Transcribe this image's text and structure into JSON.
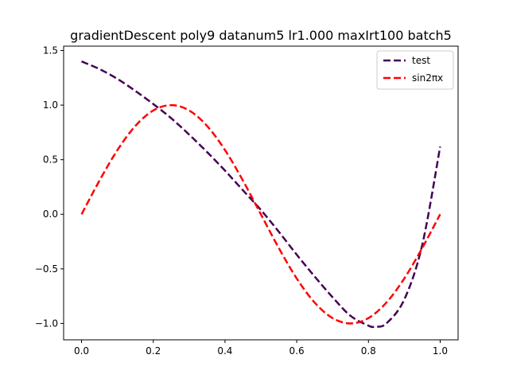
{
  "chart_data": {
    "type": "line",
    "title": "gradientDescent poly9 datanum5 lr1.000 maxIrt100 batch5",
    "xlabel": "",
    "ylabel": "",
    "xlim": [
      -0.05,
      1.05
    ],
    "ylim": [
      -1.15,
      1.54
    ],
    "x_ticks": [
      0.0,
      0.2,
      0.4,
      0.6,
      0.8,
      1.0
    ],
    "x_tick_labels": [
      "0.0",
      "0.2",
      "0.4",
      "0.6",
      "0.8",
      "1.0"
    ],
    "y_ticks": [
      -1.0,
      -0.5,
      0.0,
      0.5,
      1.0,
      1.5
    ],
    "y_tick_labels": [
      "−1.0",
      "−0.5",
      "0.0",
      "0.5",
      "1.0",
      "1.5"
    ],
    "grid": false,
    "legend_position": "top-right",
    "series": [
      {
        "name": "test",
        "color": "#440154",
        "linestyle": "dashed",
        "x": [
          0.0,
          0.05,
          0.1,
          0.15,
          0.2,
          0.25,
          0.3,
          0.35,
          0.4,
          0.45,
          0.5,
          0.55,
          0.6,
          0.65,
          0.7,
          0.75,
          0.8,
          0.82,
          0.85,
          0.9,
          0.95,
          1.0
        ],
        "y": [
          1.4,
          1.33,
          1.24,
          1.13,
          1.01,
          0.88,
          0.73,
          0.57,
          0.4,
          0.22,
          0.04,
          -0.16,
          -0.37,
          -0.57,
          -0.76,
          -0.93,
          -1.02,
          -1.03,
          -1.0,
          -0.78,
          -0.28,
          0.62
        ]
      },
      {
        "name": "sin2πx",
        "color": "#ff0000",
        "linestyle": "dashed",
        "x": [
          0.0,
          0.05,
          0.1,
          0.15,
          0.2,
          0.25,
          0.3,
          0.35,
          0.4,
          0.45,
          0.5,
          0.55,
          0.6,
          0.65,
          0.7,
          0.75,
          0.8,
          0.85,
          0.9,
          0.95,
          1.0
        ],
        "y": [
          0.0,
          0.309,
          0.588,
          0.809,
          0.951,
          1.0,
          0.951,
          0.809,
          0.588,
          0.309,
          0.0,
          -0.309,
          -0.588,
          -0.809,
          -0.951,
          -1.0,
          -0.951,
          -0.809,
          -0.588,
          -0.309,
          0.0
        ]
      }
    ]
  }
}
